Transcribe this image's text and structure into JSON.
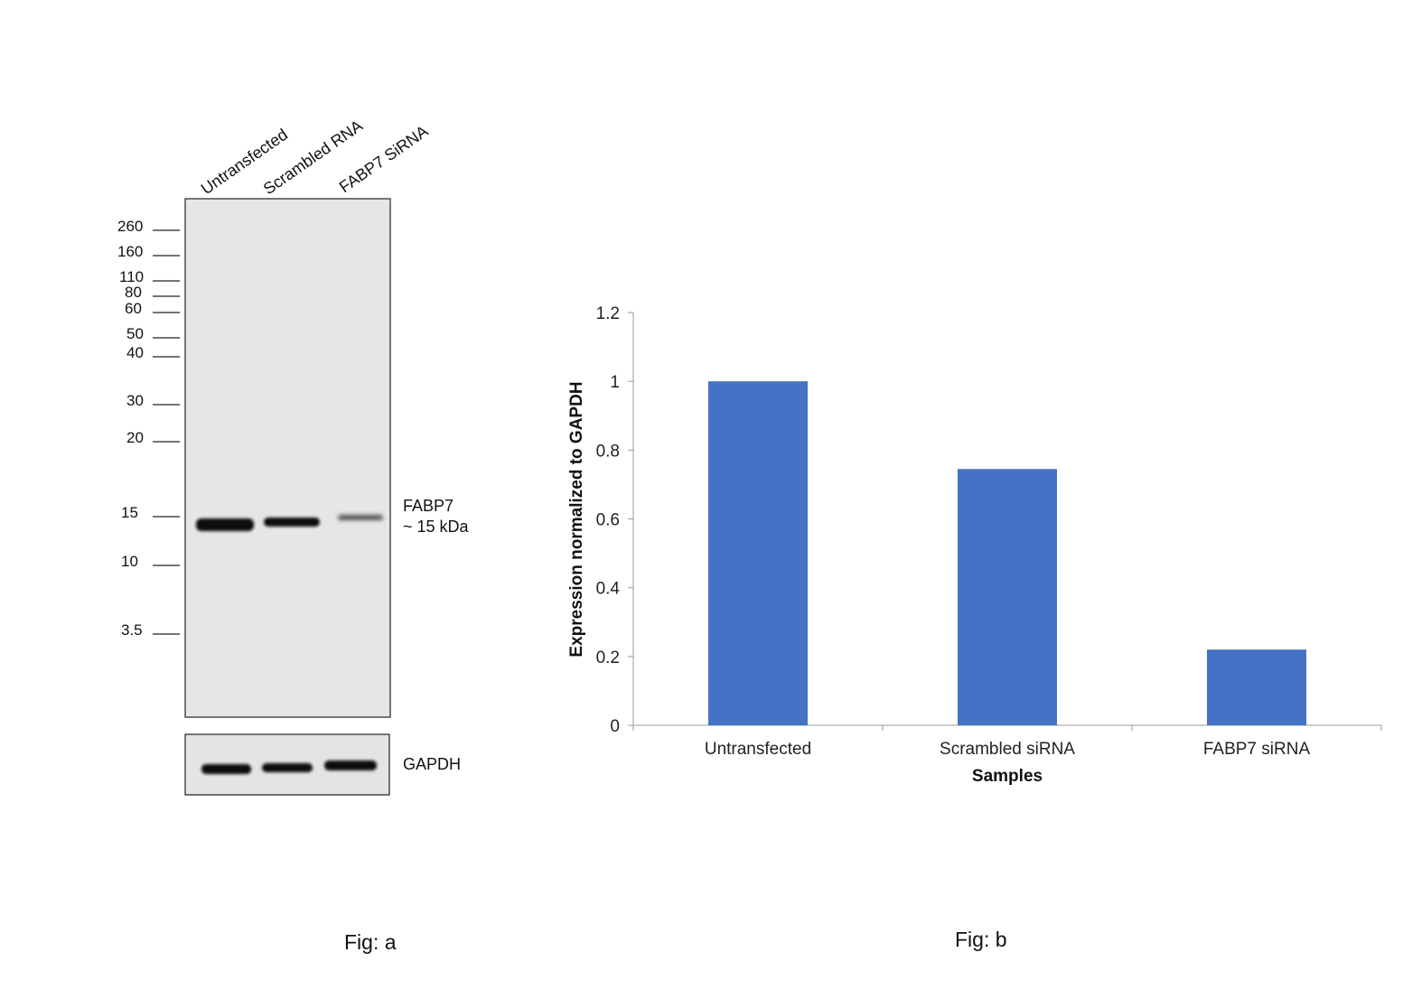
{
  "blot": {
    "lanes": [
      "Untransfected",
      "Scrambled RNA",
      "FABP7 SiRNA"
    ],
    "markers": [
      "260",
      "160",
      "110",
      "80",
      "60",
      "50",
      "40",
      "30",
      "20",
      "15",
      "10",
      "3.5"
    ],
    "target_label_line1": "FABP7",
    "target_label_line2": "~ 15 kDa",
    "control_label": "GAPDH",
    "caption": "Fig: a"
  },
  "chart_data": {
    "type": "bar",
    "categories": [
      "Untransfected",
      "Scrambled siRNA",
      "FABP7 siRNA"
    ],
    "values": [
      1.0,
      0.745,
      0.22
    ],
    "ylabel": "Expression normalized to GAPDH",
    "xlabel": "Samples",
    "ylim": [
      0,
      1.2
    ],
    "yticks": [
      0,
      0.2,
      0.4,
      0.6,
      0.8,
      1,
      1.2
    ],
    "ytick_labels": [
      "0",
      "0.2",
      "0.4",
      "0.6",
      "0.8",
      "1",
      "1.2"
    ],
    "grid": false,
    "legend": "none",
    "bar_color": "#4472C4",
    "caption": "Fig: b"
  }
}
